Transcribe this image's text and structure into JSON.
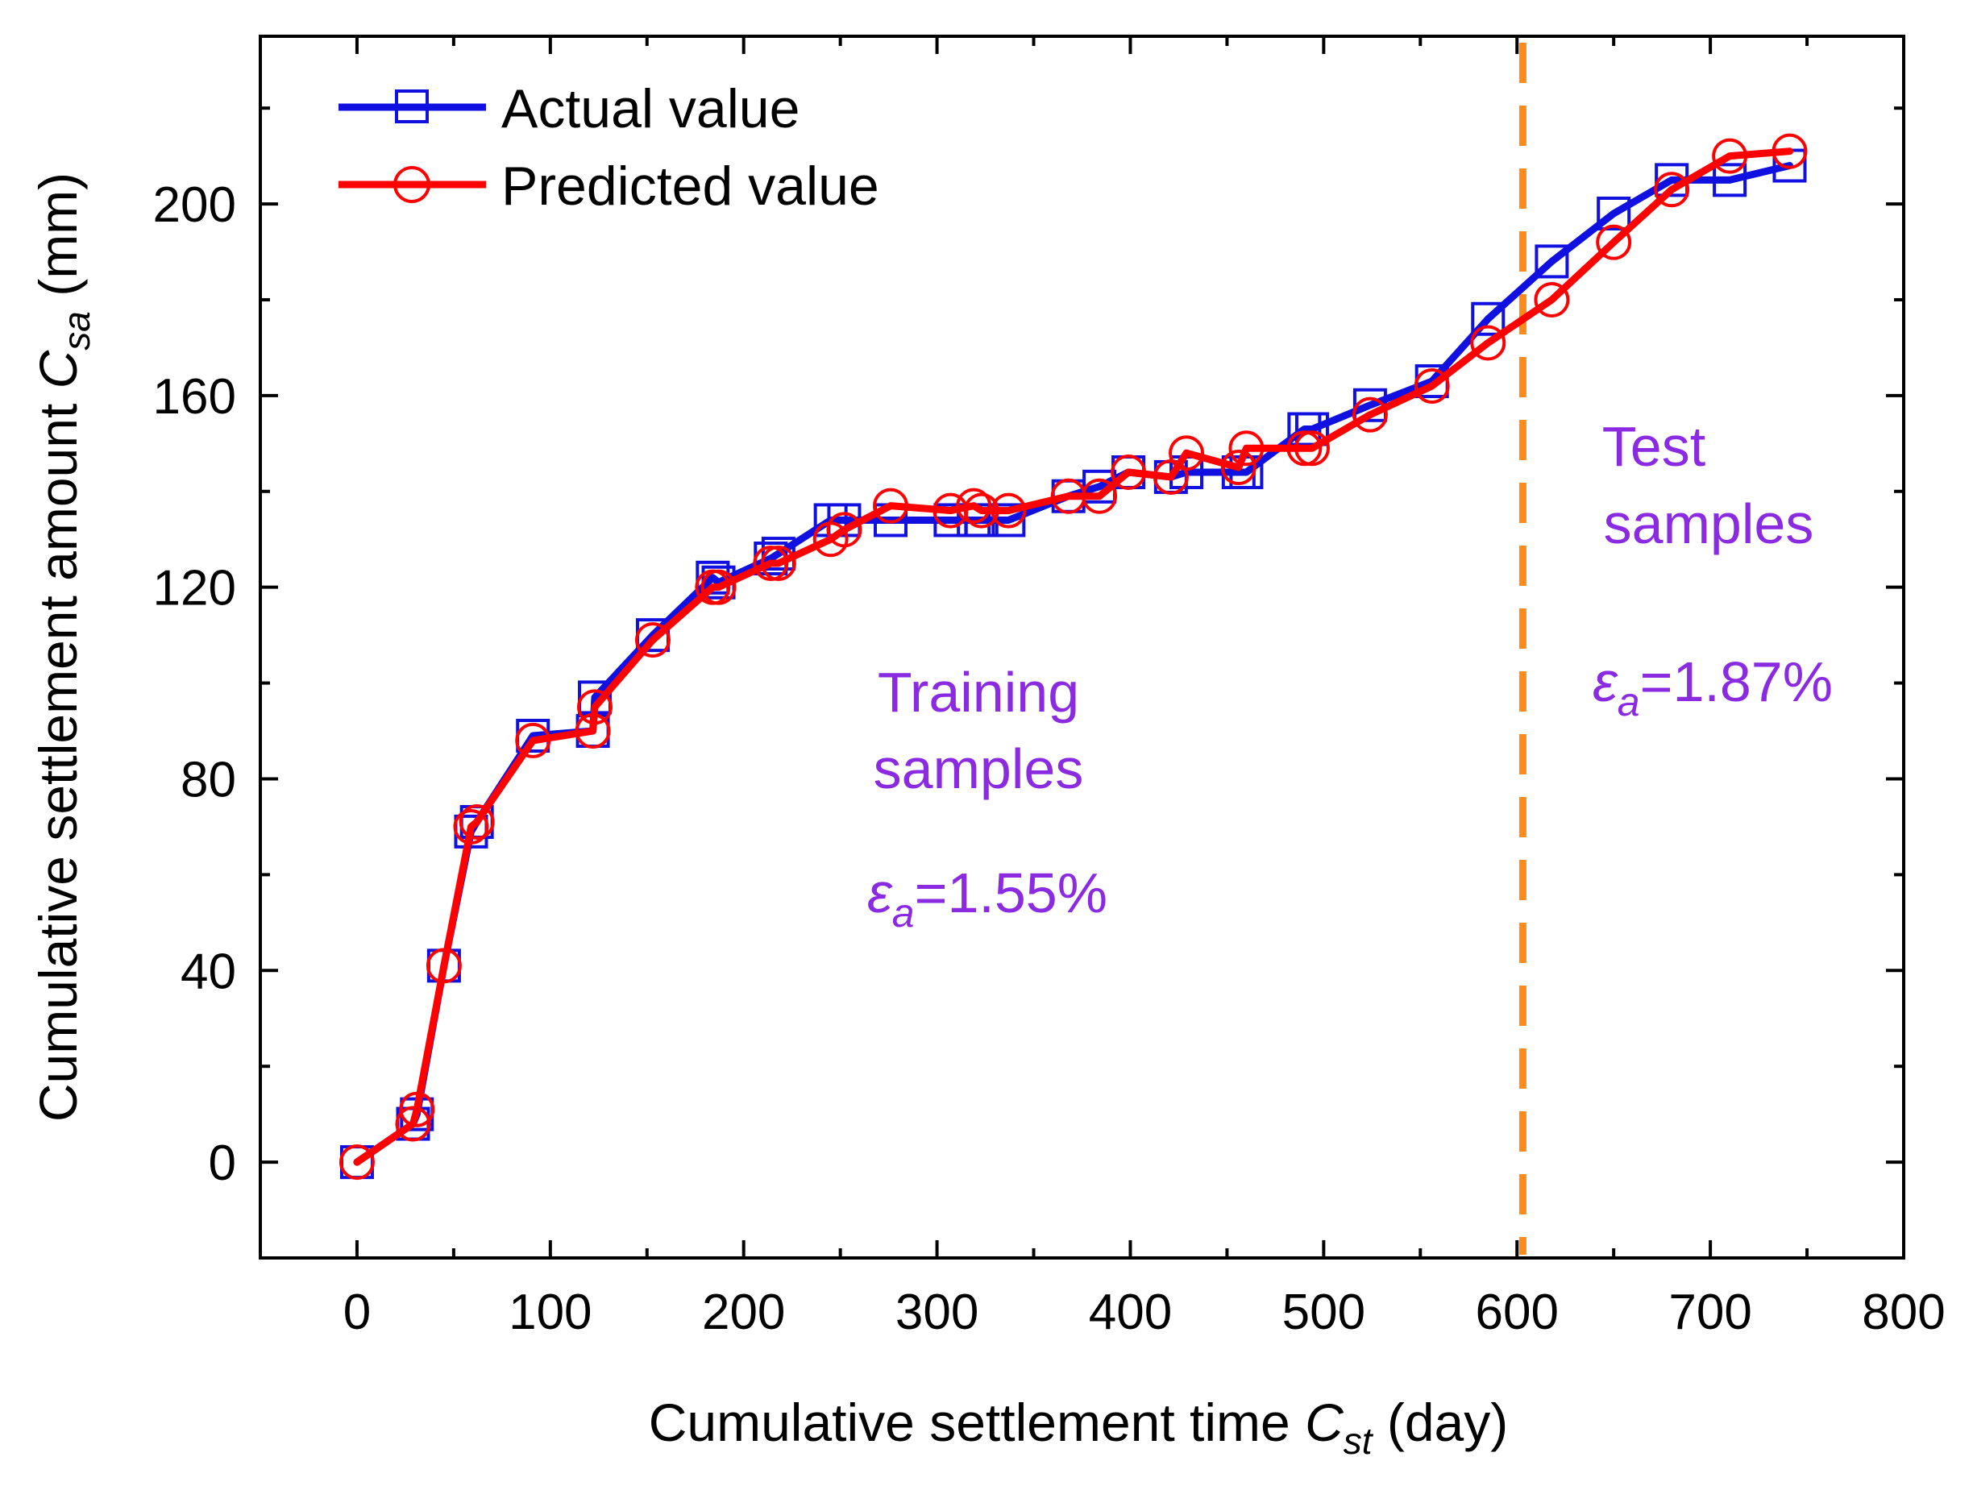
{
  "chart_data": {
    "type": "line",
    "title": "",
    "xlabel": {
      "main": "Cumulative settlement time ",
      "var": "C",
      "sub": "st",
      "unit": " (day)"
    },
    "ylabel": {
      "main": "Cumulative settlement amount ",
      "var": "C",
      "sub": "sa",
      "unit": " (mm)"
    },
    "xlim": [
      -50,
      800
    ],
    "ylim": [
      -20,
      235
    ],
    "xticks": [
      0,
      100,
      200,
      300,
      400,
      500,
      600,
      700,
      800
    ],
    "yticks": [
      0,
      40,
      80,
      120,
      160,
      200
    ],
    "grid": false,
    "legend_position": "top-left",
    "colors": {
      "actual": "#1010e0",
      "predicted": "#ff0000",
      "divider": "#ff8c1a",
      "annotation": "#8a2be2"
    },
    "series": [
      {
        "name": "Actual value",
        "marker": "square",
        "x": [
          0,
          29,
          31,
          45,
          59,
          62,
          91,
          122,
          123,
          153,
          184,
          187,
          214,
          218,
          245,
          252,
          276,
          307,
          319,
          323,
          337,
          368,
          384,
          399,
          421,
          429,
          456,
          460,
          490,
          494,
          524,
          556,
          585,
          618,
          650,
          680,
          710,
          741
        ],
        "values": [
          0,
          8,
          10,
          41,
          69,
          71,
          89,
          90,
          97,
          110,
          122,
          121,
          126,
          127,
          134,
          134,
          134,
          134,
          134,
          134,
          134,
          139,
          141,
          144,
          143,
          144,
          144,
          144,
          153,
          153,
          158,
          163,
          176,
          188,
          198,
          205,
          205,
          208
        ]
      },
      {
        "name": "Predicted value",
        "marker": "circle",
        "x": [
          0,
          29,
          31,
          45,
          59,
          62,
          91,
          122,
          123,
          153,
          184,
          187,
          214,
          218,
          245,
          252,
          276,
          307,
          319,
          323,
          337,
          368,
          384,
          399,
          421,
          429,
          456,
          460,
          490,
          494,
          524,
          556,
          585,
          618,
          650,
          680,
          710,
          741
        ],
        "values": [
          0,
          8,
          11,
          41,
          70,
          71,
          88,
          90,
          95,
          109,
          120,
          120,
          125,
          125,
          130,
          132,
          137,
          136,
          137,
          136,
          136,
          139,
          139,
          144,
          143,
          148,
          145,
          149,
          149,
          149,
          156,
          162,
          171,
          180,
          192,
          203,
          210,
          211
        ]
      }
    ],
    "divider": {
      "x": 603,
      "style": "dashed"
    },
    "annotations": [
      {
        "id": "training",
        "lines": [
          "Training",
          "samples"
        ],
        "epsilon_sym": "ε",
        "epsilon_sub": "a",
        "epsilon_value": "=1.55%"
      },
      {
        "id": "test",
        "lines": [
          "Test",
          "samples"
        ],
        "epsilon_sym": "ε",
        "epsilon_sub": "a",
        "epsilon_value": "=1.87%"
      }
    ]
  }
}
